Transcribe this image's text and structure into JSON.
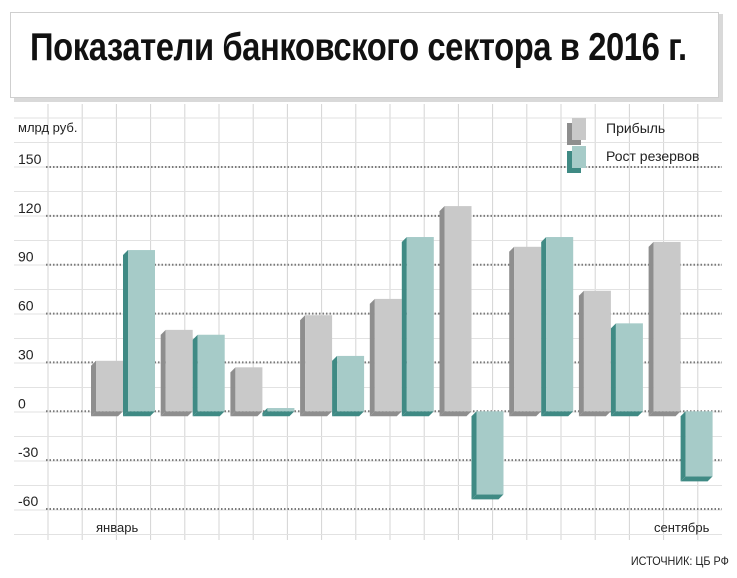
{
  "chart_data": {
    "type": "bar",
    "title": "Показатели банковского сектора в 2016 г.",
    "ylabel": "млрд руб.",
    "ylim": [
      -60,
      150
    ],
    "yticks": [
      150,
      120,
      90,
      60,
      30,
      0,
      -30,
      -60
    ],
    "x_start_label": "январь",
    "x_end_label": "сентябрь",
    "categories": [
      "январь",
      "",
      "",
      "",
      "",
      "",
      "",
      "",
      "сентябрь"
    ],
    "series": [
      {
        "name": "Прибыль",
        "values": [
          31,
          50,
          27,
          59,
          69,
          126,
          101,
          74,
          104
        ]
      },
      {
        "name": "Рост резервов",
        "values": [
          99,
          47,
          2,
          34,
          107,
          -51,
          107,
          54,
          -40
        ]
      }
    ],
    "grid": true,
    "legend_position": "top-right",
    "source": "ИСТОЧНИК: ЦБ РФ",
    "colors": {
      "profit_front": "#c9c9c9",
      "profit_side": "#8e8e8e",
      "reserves_front": "#a6cbc8",
      "reserves_side": "#3f8a84",
      "grid": "#7a7a7a"
    }
  }
}
